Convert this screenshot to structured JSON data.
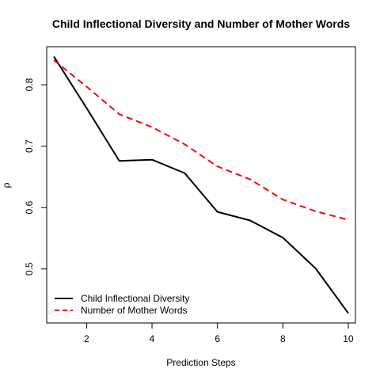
{
  "chart_data": {
    "type": "line",
    "title": "Child Inflectional Diversity and Number of Mother Words",
    "xlabel": "Prediction Steps",
    "ylabel": "ρ",
    "x": [
      1,
      2,
      3,
      4,
      5,
      6,
      7,
      8,
      9,
      10
    ],
    "xlim": [
      0.78,
      10.22
    ],
    "ylim": [
      0.412,
      0.862
    ],
    "xticks": [
      2,
      4,
      6,
      8,
      10
    ],
    "yticks": [
      0.5,
      0.6,
      0.7,
      0.8
    ],
    "grid": false,
    "legend_position": "bottom-left",
    "series": [
      {
        "name": "Child Inflectional Diversity",
        "color": "#000000",
        "dash": "solid",
        "values": [
          0.846,
          0.762,
          0.676,
          0.678,
          0.656,
          0.593,
          0.579,
          0.551,
          0.501,
          0.428
        ]
      },
      {
        "name": "Number of Mother Words",
        "color": "#ff0000",
        "dash": "dashed",
        "values": [
          0.84,
          0.797,
          0.752,
          0.731,
          0.703,
          0.667,
          0.646,
          0.613,
          0.594,
          0.58
        ]
      }
    ]
  }
}
